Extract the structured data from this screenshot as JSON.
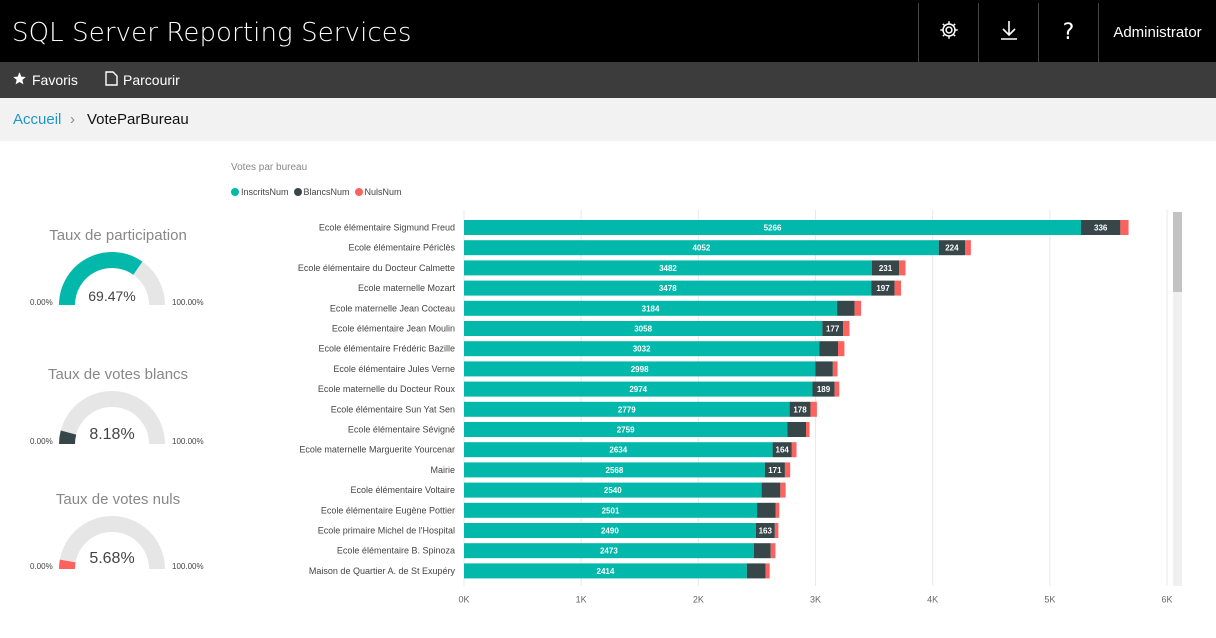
{
  "app": {
    "title": "SQL Server Reporting Services",
    "user": "Administrator",
    "icons": {
      "settings": "gear-icon",
      "download": "download-icon",
      "help": "help-icon"
    }
  },
  "nav": {
    "favorites": "Favoris",
    "browse": "Parcourir"
  },
  "breadcrumb": {
    "home": "Accueil",
    "separator": "›",
    "current": "VoteParBureau"
  },
  "gauges": [
    {
      "title": "Taux de participation",
      "value_label": "69.47%",
      "value": 0.6947,
      "min_label": "0.00%",
      "max_label": "100.00%",
      "color": "#01b8aa"
    },
    {
      "title": "Taux de votes blancs",
      "value_label": "8.18%",
      "value": 0.0818,
      "min_label": "0.00%",
      "max_label": "100.00%",
      "color": "#374649"
    },
    {
      "title": "Taux de votes nuls",
      "value_label": "5.68%",
      "value": 0.0568,
      "min_label": "0.00%",
      "max_label": "100.00%",
      "color": "#fd625e"
    }
  ],
  "chart_data": {
    "type": "bar",
    "orientation": "horizontal",
    "stacked": true,
    "title": "Votes par bureau",
    "legend": [
      "InscritsNum",
      "BlancsNum",
      "NulsNum"
    ],
    "legend_position": "top-left",
    "colors": {
      "InscritsNum": "#01b8aa",
      "BlancsNum": "#374649",
      "NulsNum": "#fd625e"
    },
    "xlim": [
      0,
      6000
    ],
    "xticks": [
      0,
      1000,
      2000,
      3000,
      4000,
      5000,
      6000
    ],
    "xtick_labels": [
      "0K",
      "1K",
      "2K",
      "3K",
      "4K",
      "5K",
      "6K"
    ],
    "grid": true,
    "categories": [
      "Ecole élémentaire Sigmund Freud",
      "Ecole élémentaire Périclès",
      "Ecole élémentaire du Docteur Calmette",
      "Ecole maternelle Mozart",
      "Ecole maternelle Jean Cocteau",
      "Ecole élémentaire Jean Moulin",
      "Ecole élémentaire Frédéric Bazille",
      "Ecole élémentaire Jules Verne",
      "Ecole maternelle du Docteur Roux",
      "Ecole élémentaire Sun Yat Sen",
      "Ecole élémentaire Sévigné",
      "Ecole maternelle Marguerite Yourcenar",
      "Mairie",
      "Ecole élémentaire Voltaire",
      "Ecole élémentaire Eugène Pottier",
      "Ecole primaire Michel de l'Hospital",
      "Ecole élémentaire B. Spinoza",
      "Maison de Quartier A. de St Exupéry"
    ],
    "series": [
      {
        "name": "InscritsNum",
        "values": [
          5266,
          4052,
          3482,
          3478,
          3184,
          3058,
          3032,
          2998,
          2974,
          2779,
          2759,
          2634,
          2568,
          2540,
          2501,
          2490,
          2473,
          2414
        ],
        "labels": [
          "5266",
          "4052",
          "3482",
          "3478",
          "3184",
          "3058",
          "3032",
          "2998",
          "2974",
          "2779",
          "2759",
          "2634",
          "2568",
          "2540",
          "2501",
          "2490",
          "2473",
          "2414"
        ]
      },
      {
        "name": "BlancsNum",
        "values": [
          336,
          224,
          231,
          197,
          150,
          177,
          160,
          150,
          189,
          178,
          160,
          164,
          171,
          160,
          160,
          163,
          145,
          160
        ],
        "labels": [
          "336",
          "224",
          "231",
          "197",
          "",
          "177",
          "",
          "",
          "189",
          "178",
          "",
          "164",
          "171",
          "",
          "",
          "163",
          "",
          ""
        ]
      },
      {
        "name": "NulsNum",
        "values": [
          70,
          50,
          55,
          55,
          55,
          55,
          55,
          40,
          40,
          55,
          30,
          40,
          45,
          45,
          30,
          30,
          40,
          35
        ],
        "labels": [
          "",
          "",
          "",
          "",
          "",
          "",
          "",
          "",
          "",
          "",
          "",
          "",
          "",
          "",
          "",
          "",
          "",
          ""
        ]
      }
    ]
  }
}
